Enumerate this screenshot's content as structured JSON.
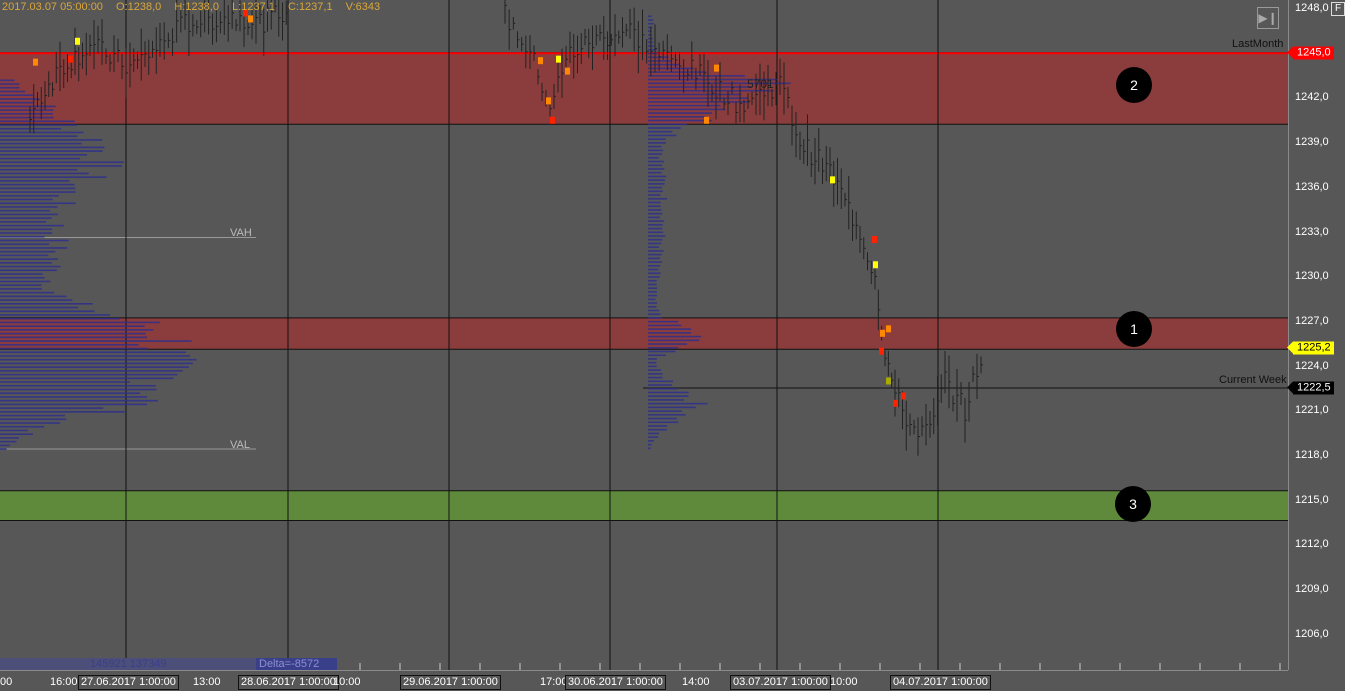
{
  "header": {
    "datetime": "2017.03.07 05:00:00",
    "open": "O:1238,0",
    "high": "H:1238,0",
    "low": "L:1237,1",
    "close": "C:1237,1",
    "volume": "V:6343"
  },
  "price_axis": {
    "labels": [
      "1248,0",
      "1242,0",
      "1239,0",
      "1236,0",
      "1233,0",
      "1230,0",
      "1227,0",
      "1224,0",
      "1221,0",
      "1218,0",
      "1215,0",
      "1212,0",
      "1209,0",
      "1206,0"
    ],
    "values": [
      1248,
      1242,
      1239,
      1236,
      1233,
      1230,
      1227,
      1224,
      1221,
      1218,
      1215,
      1212,
      1209,
      1206
    ],
    "last_price_tag": "1245,0",
    "current_price_tag": "1225,2",
    "current_week_tag": "1222,5",
    "last_color": "#ff0000",
    "current_color": "#ffff00",
    "week_color": "#000000",
    "f_button": "F"
  },
  "levels": {
    "last_month_label": "LastMonth",
    "current_week_label": "Current Week",
    "vah_label": "VAH",
    "val_label": "VAL",
    "poc_volume": "5701"
  },
  "zones": [
    {
      "label": "1",
      "top": 1227.2,
      "bottom": 1225.1,
      "color": "#8b3c3c"
    },
    {
      "label": "2",
      "top": 1245.0,
      "bottom": 1240.2,
      "color": "#8b3c3c"
    },
    {
      "label": "3",
      "top": 1215.6,
      "bottom": 1213.6,
      "color": "#5f8a3c"
    }
  ],
  "footer": {
    "volumes": "145921 137349",
    "delta": "Delta=-8572"
  },
  "time_axis": {
    "labels": [
      {
        "t": "00"
      },
      {
        "t": "16:00"
      },
      {
        "t": "13:00"
      },
      {
        "t": "10:00"
      },
      {
        "t": "17:00"
      },
      {
        "t": "14:00"
      },
      {
        "t": "10:00"
      }
    ],
    "boxes": [
      "27.06.2017 1:00:00",
      "28.06.2017 1:00:00",
      "29.06.2017 1:00:00",
      "30.06.2017 1:00:00",
      "03.07.2017 1:00:00",
      "04.07.2017 1:00:00"
    ]
  },
  "icons": {
    "scroll_end": "skip-to-end-icon"
  }
}
